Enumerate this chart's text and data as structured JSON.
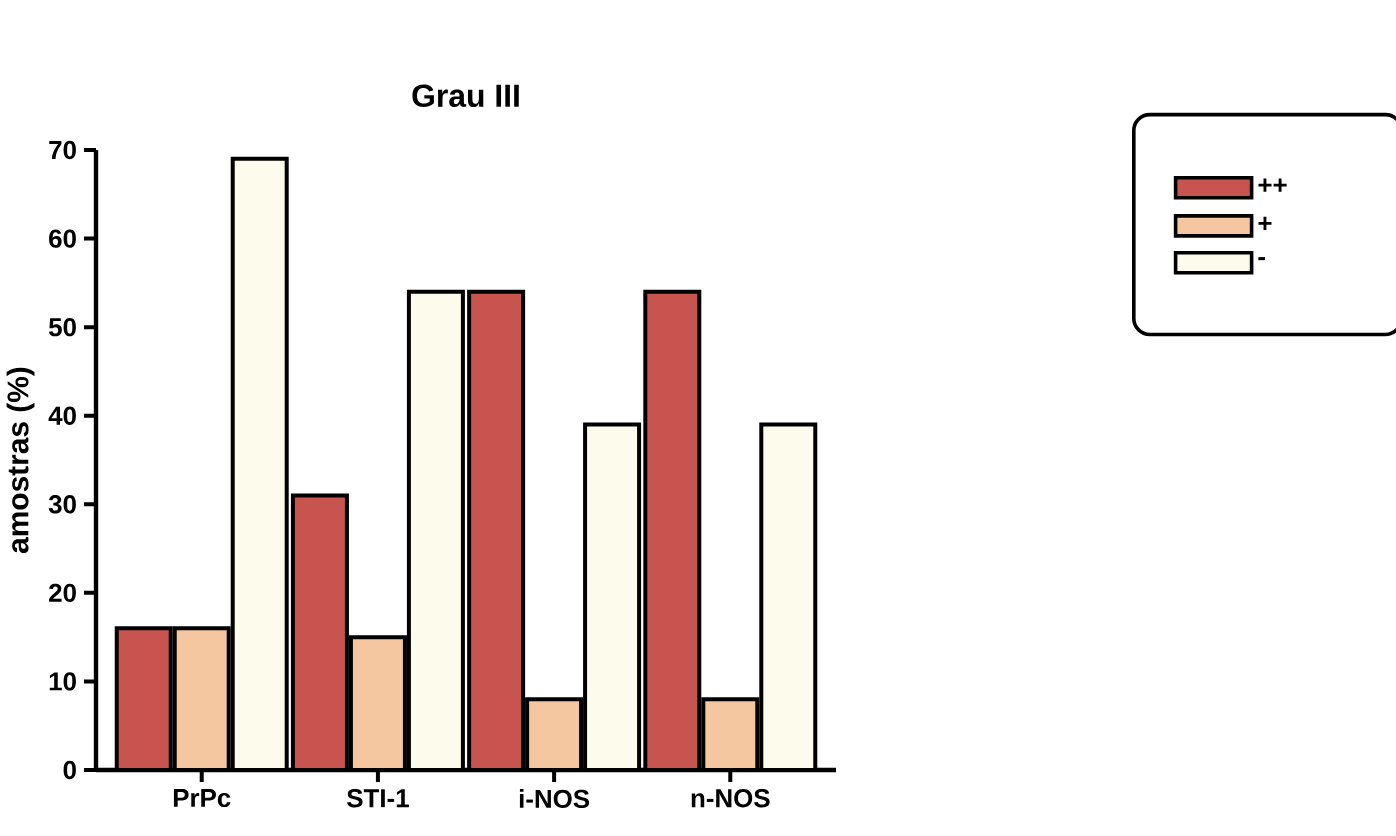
{
  "chart_data": {
    "type": "bar",
    "title": "Grau III",
    "ylabel": "amostras (%)",
    "categories": [
      "PrPc",
      "STI-1",
      "i-NOS",
      "n-NOS"
    ],
    "series": [
      {
        "name": "++",
        "color": "#c85450",
        "values": [
          16,
          31,
          54,
          54
        ]
      },
      {
        "name": "+",
        "color": "#f5c7a0",
        "values": [
          16,
          15,
          8,
          8
        ]
      },
      {
        "name": "-",
        "color": "#fdfcec",
        "values": [
          69,
          54,
          39,
          39
        ]
      }
    ],
    "ylim": [
      0,
      70
    ],
    "yticks": [
      0,
      10,
      20,
      30,
      40,
      50,
      60,
      70
    ],
    "legend": "right",
    "grid": false
  }
}
